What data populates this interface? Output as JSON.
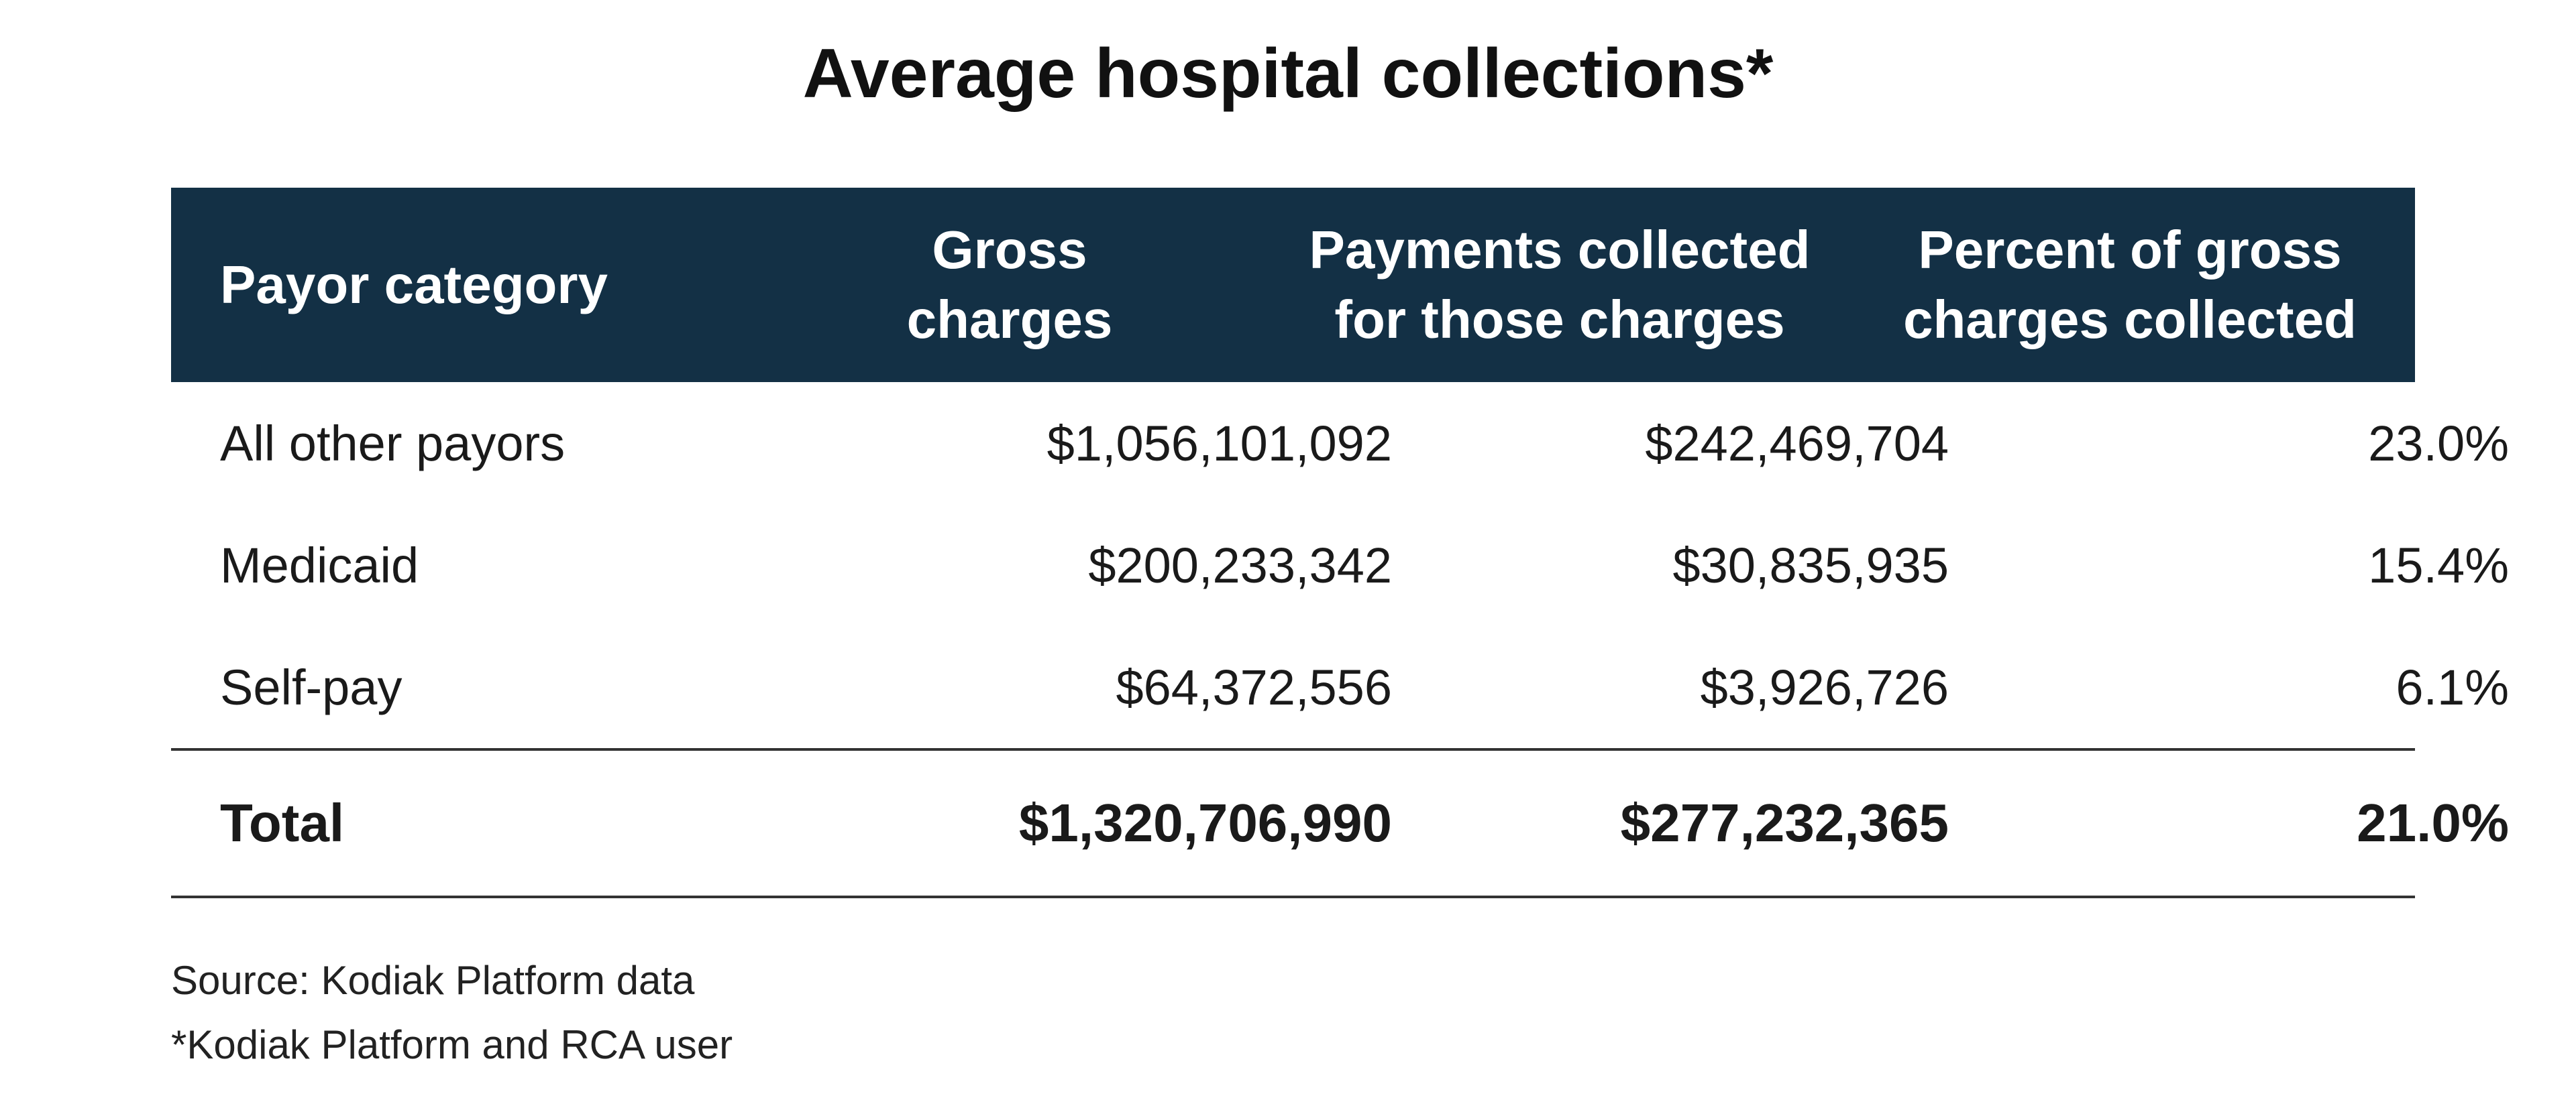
{
  "chart_data": {
    "type": "table",
    "title": "Average hospital collections*",
    "columns": [
      [
        "Payor category"
      ],
      [
        "Gross",
        "charges"
      ],
      [
        "Payments collected",
        "for those charges"
      ],
      [
        "Percent of gross",
        "charges collected"
      ]
    ],
    "rows": [
      [
        "All other payors",
        "$1,056,101,092",
        "$242,469,704",
        "23.0%"
      ],
      [
        "Medicaid",
        "$200,233,342",
        "$30,835,935",
        "15.4%"
      ],
      [
        "Self-pay",
        "$64,372,556",
        "$3,926,726",
        "6.1%"
      ]
    ],
    "total": [
      "Total",
      "$1,320,706,990",
      "$277,232,365",
      "21.0%"
    ],
    "header_background": "#133045",
    "header_text_color": "#ffffff"
  },
  "footnotes": {
    "source": "Source: Kodiak Platform data",
    "note": "*Kodiak Platform and RCA user"
  }
}
